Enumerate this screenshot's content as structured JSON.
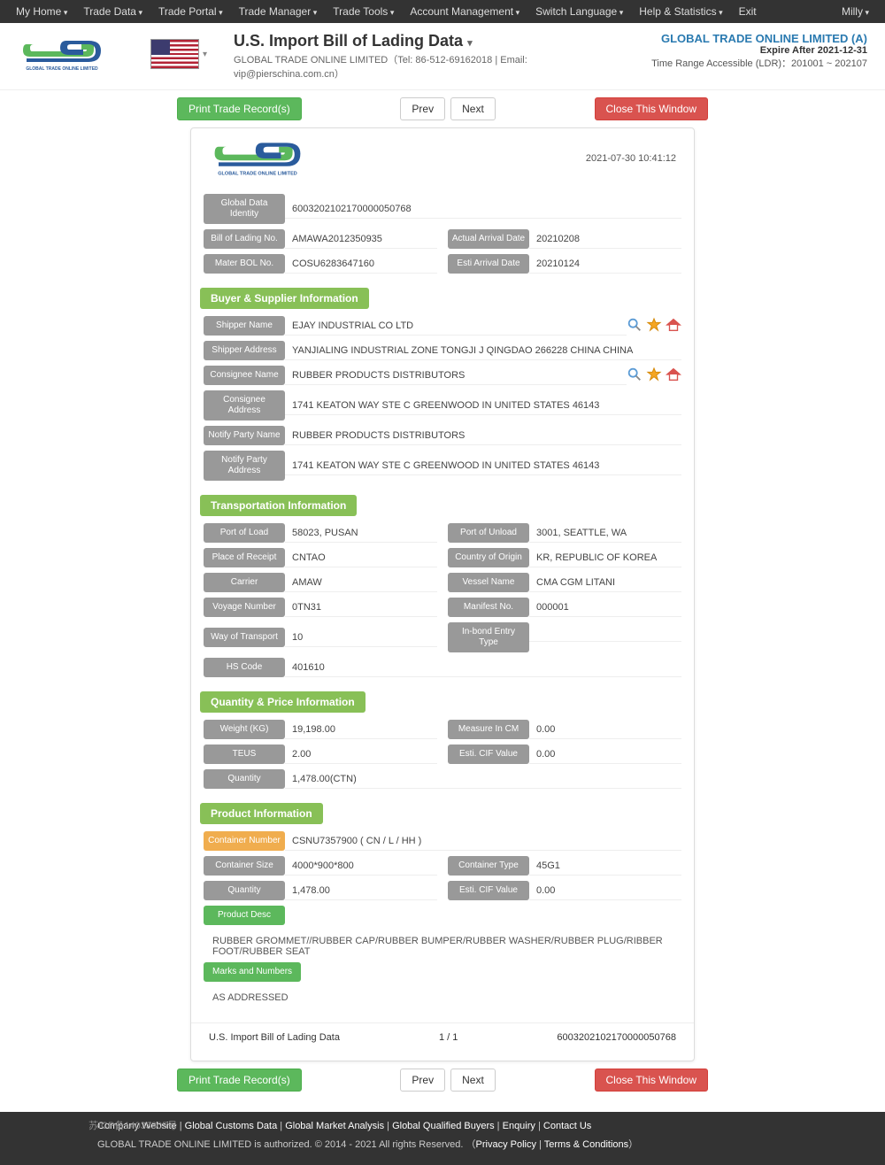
{
  "topnav": {
    "left": [
      "My Home",
      "Trade Data",
      "Trade Portal",
      "Trade Manager",
      "Trade Tools",
      "Account Management",
      "Switch Language",
      "Help & Statistics",
      "Exit"
    ],
    "has_caret": [
      true,
      true,
      true,
      true,
      true,
      true,
      true,
      true,
      false
    ],
    "user": "Milly"
  },
  "logo": {
    "brand_text": "GLOBAL TRADE ONLINE LIMITED"
  },
  "header": {
    "title": "U.S. Import Bill of Lading Data",
    "subtitle": "GLOBAL TRADE ONLINE LIMITED（Tel: 86-512-69162018 | Email: vip@pierschina.com.cn）",
    "account_name": "GLOBAL TRADE ONLINE LIMITED (A)",
    "expire": "Expire After 2021-12-31",
    "range": "Time Range Accessible (LDR)：201001 ~ 202107"
  },
  "toolbar": {
    "print": "Print Trade Record(s)",
    "prev": "Prev",
    "next": "Next",
    "close": "Close This Window"
  },
  "record": {
    "timestamp": "2021-07-30 10:41:12",
    "identity": {
      "rows": [
        [
          {
            "label": "Global Data Identity",
            "value": "6003202102170000050768"
          }
        ],
        [
          {
            "label": "Bill of Lading No.",
            "value": "AMAWA2012350935"
          },
          {
            "label": "Actual Arrival Date",
            "value": "20210208"
          }
        ],
        [
          {
            "label": "Mater BOL No.",
            "value": "COSU6283647160"
          },
          {
            "label": "Esti Arrival Date",
            "value": "20210124"
          }
        ]
      ]
    },
    "buyer_supplier": {
      "title": "Buyer & Supplier Information",
      "rows": [
        [
          {
            "label": "Shipper Name",
            "value": "EJAY INDUSTRIAL CO LTD",
            "icons": true
          }
        ],
        [
          {
            "label": "Shipper Address",
            "value": "YANJIALING INDUSTRIAL ZONE TONGJI J QINGDAO 266228 CHINA CHINA"
          }
        ],
        [
          {
            "label": "Consignee Name",
            "value": "RUBBER PRODUCTS DISTRIBUTORS",
            "icons": true
          }
        ],
        [
          {
            "label": "Consignee Address",
            "value": "1741 KEATON WAY STE C GREENWOOD IN UNITED STATES 46143"
          }
        ],
        [
          {
            "label": "Notify Party Name",
            "value": "RUBBER PRODUCTS DISTRIBUTORS"
          }
        ],
        [
          {
            "label": "Notify Party Address",
            "value": "1741 KEATON WAY STE C GREENWOOD IN UNITED STATES 46143"
          }
        ]
      ]
    },
    "transport": {
      "title": "Transportation Information",
      "rows": [
        [
          {
            "label": "Port of Load",
            "value": "58023, PUSAN"
          },
          {
            "label": "Port of Unload",
            "value": "3001, SEATTLE, WA"
          }
        ],
        [
          {
            "label": "Place of Receipt",
            "value": "CNTAO"
          },
          {
            "label": "Country of Origin",
            "value": "KR, REPUBLIC OF KOREA"
          }
        ],
        [
          {
            "label": "Carrier",
            "value": "AMAW"
          },
          {
            "label": "Vessel Name",
            "value": "CMA CGM LITANI"
          }
        ],
        [
          {
            "label": "Voyage Number",
            "value": "0TN31"
          },
          {
            "label": "Manifest No.",
            "value": "000001"
          }
        ],
        [
          {
            "label": "Way of Transport",
            "value": "10"
          },
          {
            "label": "In-bond Entry Type",
            "value": ""
          }
        ],
        [
          {
            "label": "HS Code",
            "value": "401610"
          }
        ]
      ]
    },
    "quantity": {
      "title": "Quantity & Price Information",
      "rows": [
        [
          {
            "label": "Weight (KG)",
            "value": "19,198.00"
          },
          {
            "label": "Measure In CM",
            "value": "0.00"
          }
        ],
        [
          {
            "label": "TEUS",
            "value": "2.00"
          },
          {
            "label": "Esti. CIF Value",
            "value": "0.00"
          }
        ],
        [
          {
            "label": "Quantity",
            "value": "1,478.00(CTN)"
          }
        ]
      ]
    },
    "product": {
      "title": "Product Information",
      "container_no_label": "Container Number",
      "container_no": "CSNU7357900 ( CN / L / HH )",
      "rows": [
        [
          {
            "label": "Container Size",
            "value": "4000*900*800"
          },
          {
            "label": "Container Type",
            "value": "45G1"
          }
        ],
        [
          {
            "label": "Quantity",
            "value": "1,478.00"
          },
          {
            "label": "Esti. CIF Value",
            "value": "0.00"
          }
        ]
      ],
      "desc_label": "Product Desc",
      "desc": "RUBBER GROMMET//RUBBER CAP/RUBBER BUMPER/RUBBER WASHER/RUBBER PLUG/RIBBER FOOT/RUBBER SEAT",
      "marks_label": "Marks and Numbers",
      "marks": "AS ADDRESSED"
    },
    "footer": {
      "title": "U.S. Import Bill of Lading Data",
      "page": "1 / 1",
      "id": "6003202102170000050768"
    }
  },
  "footer": {
    "links": [
      "Company Website",
      "Global Customs Data",
      "Global Market Analysis",
      "Global Qualified Buyers",
      "Enquiry",
      "Contact Us"
    ],
    "copyright": "GLOBAL TRADE ONLINE LIMITED is authorized. © 2014 - 2021 All rights Reserved. ",
    "policy": "Privacy Policy",
    "terms": "Terms & Conditions",
    "icp": "苏ICP备14033305号"
  }
}
